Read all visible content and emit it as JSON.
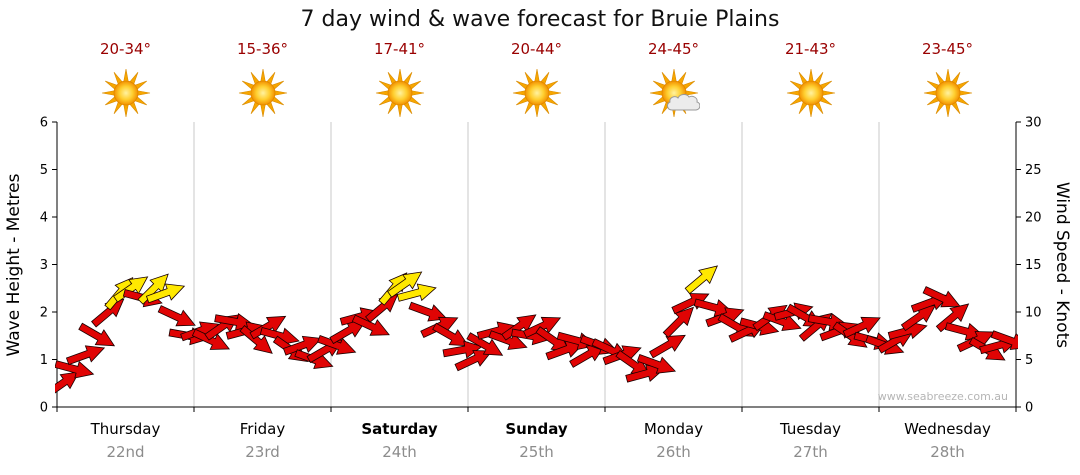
{
  "title": "7 day wind & wave forecast for Bruie Plains",
  "watermark": "www.seabreeze.com.au",
  "days": [
    {
      "name": "Thursday",
      "date": "22nd",
      "temp": "20-34°",
      "icon": "sunny",
      "bold": false
    },
    {
      "name": "Friday",
      "date": "23rd",
      "temp": "15-36°",
      "icon": "sunny",
      "bold": false
    },
    {
      "name": "Saturday",
      "date": "24th",
      "temp": "17-41°",
      "icon": "sunny",
      "bold": true
    },
    {
      "name": "Sunday",
      "date": "25th",
      "temp": "20-44°",
      "icon": "sunny",
      "bold": true
    },
    {
      "name": "Monday",
      "date": "26th",
      "temp": "24-45°",
      "icon": "partly-cloudy",
      "bold": false
    },
    {
      "name": "Tuesday",
      "date": "27th",
      "temp": "21-43°",
      "icon": "sunny",
      "bold": false
    },
    {
      "name": "Wednesday",
      "date": "28th",
      "temp": "23-45°",
      "icon": "sunny",
      "bold": false
    }
  ],
  "left_axis": {
    "label": "Wave Height - Metres",
    "min": 0,
    "max": 6,
    "ticks": [
      0,
      1,
      2,
      3,
      4,
      5,
      6
    ]
  },
  "right_axis": {
    "label": "Wind Speed - Knots",
    "min": 0,
    "max": 30,
    "ticks": [
      0,
      5,
      10,
      15,
      20,
      25,
      30
    ]
  },
  "chart_data": {
    "type": "wind-arrow-forecast",
    "title": "7 day wind & wave forecast for Bruie Plains",
    "categories": [
      "Thursday 22nd",
      "Friday 23rd",
      "Saturday 24th",
      "Sunday 25th",
      "Monday 26th",
      "Tuesday 27th",
      "Wednesday 28th"
    ],
    "wind_axis": {
      "min": 0,
      "max": 30,
      "unit": "knots"
    },
    "wave_axis": {
      "min": 0,
      "max": 6,
      "unit": "metres"
    },
    "strong_threshold_knots": 12,
    "arrow_color_rule": "yellow when wind >= 12 knots, red below",
    "colors": {
      "light_wind_arrow": "#e00404",
      "strong_wind_arrow": "#ffe800"
    },
    "gridlines": "vertical-day-boundaries",
    "days": [
      {
        "day": "Thursday",
        "points": [
          [
            2.5,
            -35
          ],
          [
            4,
            15
          ],
          [
            5.5,
            -20
          ],
          [
            7.5,
            30
          ],
          [
            10,
            -40
          ],
          [
            12,
            -50
          ],
          [
            12.5,
            -35
          ],
          [
            11.5,
            15
          ],
          [
            12.5,
            -45
          ],
          [
            12,
            -20
          ],
          [
            9.5,
            25
          ],
          [
            7.5,
            10
          ]
        ]
      },
      {
        "day": "Friday",
        "points": [
          [
            8,
            -20
          ],
          [
            7,
            25
          ],
          [
            8.5,
            -35
          ],
          [
            9,
            10
          ],
          [
            8,
            -15
          ],
          [
            7,
            40
          ],
          [
            8.5,
            -30
          ],
          [
            7.5,
            15
          ],
          [
            6,
            35
          ],
          [
            6.5,
            -20
          ],
          [
            5,
            20
          ],
          [
            6,
            -30
          ]
        ]
      },
      {
        "day": "Saturday",
        "points": [
          [
            6.5,
            20
          ],
          [
            8,
            -30
          ],
          [
            9.5,
            -15
          ],
          [
            8.5,
            25
          ],
          [
            10.5,
            -40
          ],
          [
            12.5,
            -50
          ],
          [
            13,
            -35
          ],
          [
            12,
            -15
          ],
          [
            10,
            20
          ],
          [
            8.5,
            -25
          ],
          [
            7.5,
            30
          ],
          [
            6,
            -10
          ]
        ]
      },
      {
        "day": "Sunday",
        "points": [
          [
            5,
            -25
          ],
          [
            6.5,
            30
          ],
          [
            8,
            -15
          ],
          [
            7,
            20
          ],
          [
            8.5,
            -35
          ],
          [
            7.5,
            10
          ],
          [
            8.5,
            -25
          ],
          [
            7,
            35
          ],
          [
            6,
            -20
          ],
          [
            7,
            15
          ],
          [
            5.5,
            -30
          ],
          [
            6.5,
            20
          ]
        ]
      },
      {
        "day": "Monday",
        "points": [
          [
            6,
            25
          ],
          [
            5.5,
            -20
          ],
          [
            4.5,
            35
          ],
          [
            3.5,
            -15
          ],
          [
            4.5,
            20
          ],
          [
            6.5,
            -30
          ],
          [
            9,
            -45
          ],
          [
            11,
            -25
          ],
          [
            13.5,
            -40
          ],
          [
            10.5,
            15
          ],
          [
            9.5,
            -20
          ],
          [
            8.5,
            30
          ]
        ]
      },
      {
        "day": "Tuesday",
        "points": [
          [
            8,
            -25
          ],
          [
            8.5,
            15
          ],
          [
            9.5,
            -35
          ],
          [
            9,
            20
          ],
          [
            10,
            -15
          ],
          [
            9.5,
            30
          ],
          [
            8.5,
            -40
          ],
          [
            9,
            10
          ],
          [
            8,
            -20
          ],
          [
            7.5,
            35
          ],
          [
            8.5,
            -25
          ],
          [
            7,
            15
          ]
        ]
      },
      {
        "day": "Wednesday",
        "points": [
          [
            6.5,
            20
          ],
          [
            7,
            -30
          ],
          [
            8,
            -15
          ],
          [
            9.5,
            -35
          ],
          [
            11,
            -20
          ],
          [
            11.5,
            25
          ],
          [
            9.5,
            -40
          ],
          [
            8,
            15
          ],
          [
            7,
            -25
          ],
          [
            6,
            30
          ],
          [
            6.5,
            -15
          ],
          [
            7,
            20
          ]
        ]
      }
    ]
  }
}
